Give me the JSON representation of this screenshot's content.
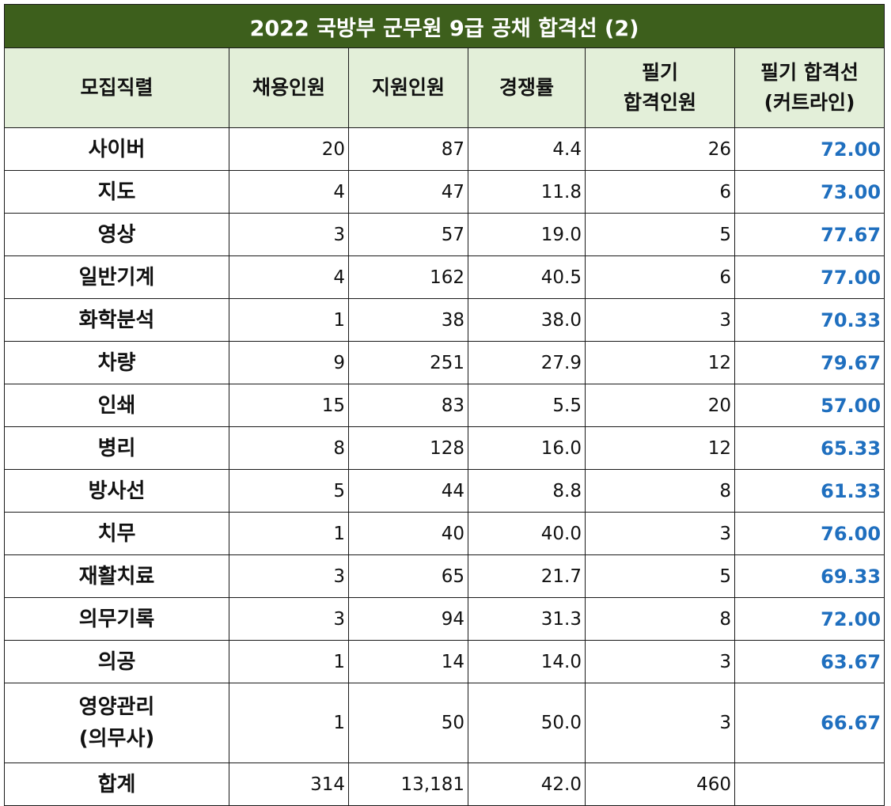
{
  "title": "2022 국방부 군무원 9급 공채  합격선 (2)",
  "headers": {
    "job": "모집직렬",
    "hire": "채용인원",
    "apply": "지원인원",
    "ratio": "경쟁률",
    "pass_line1": "필기",
    "pass_line2": "합격인원",
    "cut_line1": "필기 합격선",
    "cut_line2": "(커트라인)"
  },
  "rows": [
    {
      "name": "사이버",
      "hire": "20",
      "apply": "87",
      "ratio": "4.4",
      "pass": "26",
      "cut": "72.00"
    },
    {
      "name": "지도",
      "hire": "4",
      "apply": "47",
      "ratio": "11.8",
      "pass": "6",
      "cut": "73.00"
    },
    {
      "name": "영상",
      "hire": "3",
      "apply": "57",
      "ratio": "19.0",
      "pass": "5",
      "cut": "77.67"
    },
    {
      "name": "일반기계",
      "hire": "4",
      "apply": "162",
      "ratio": "40.5",
      "pass": "6",
      "cut": "77.00"
    },
    {
      "name": "화학분석",
      "hire": "1",
      "apply": "38",
      "ratio": "38.0",
      "pass": "3",
      "cut": "70.33"
    },
    {
      "name": "차량",
      "hire": "9",
      "apply": "251",
      "ratio": "27.9",
      "pass": "12",
      "cut": "79.67"
    },
    {
      "name": "인쇄",
      "hire": "15",
      "apply": "83",
      "ratio": "5.5",
      "pass": "20",
      "cut": "57.00"
    },
    {
      "name": "병리",
      "hire": "8",
      "apply": "128",
      "ratio": "16.0",
      "pass": "12",
      "cut": "65.33"
    },
    {
      "name": "방사선",
      "hire": "5",
      "apply": "44",
      "ratio": "8.8",
      "pass": "8",
      "cut": "61.33"
    },
    {
      "name": "치무",
      "hire": "1",
      "apply": "40",
      "ratio": "40.0",
      "pass": "3",
      "cut": "76.00"
    },
    {
      "name": "재활치료",
      "hire": "3",
      "apply": "65",
      "ratio": "21.7",
      "pass": "5",
      "cut": "69.33"
    },
    {
      "name": "의무기록",
      "hire": "3",
      "apply": "94",
      "ratio": "31.3",
      "pass": "8",
      "cut": "72.00"
    },
    {
      "name": "의공",
      "hire": "1",
      "apply": "14",
      "ratio": "14.0",
      "pass": "3",
      "cut": "63.67"
    }
  ],
  "tall_row": {
    "name_line1": "영양관리",
    "name_line2": "(의무사)",
    "hire": "1",
    "apply": "50",
    "ratio": "50.0",
    "pass": "3",
    "cut": "66.67"
  },
  "total": {
    "name": "합계",
    "hire": "314",
    "apply": "13,181",
    "ratio": "42.0",
    "pass": "460",
    "cut": ""
  },
  "colors": {
    "title_bg": "#3d5f1c",
    "header_bg": "#e3efd9",
    "cut_text": "#1f6fbf"
  }
}
